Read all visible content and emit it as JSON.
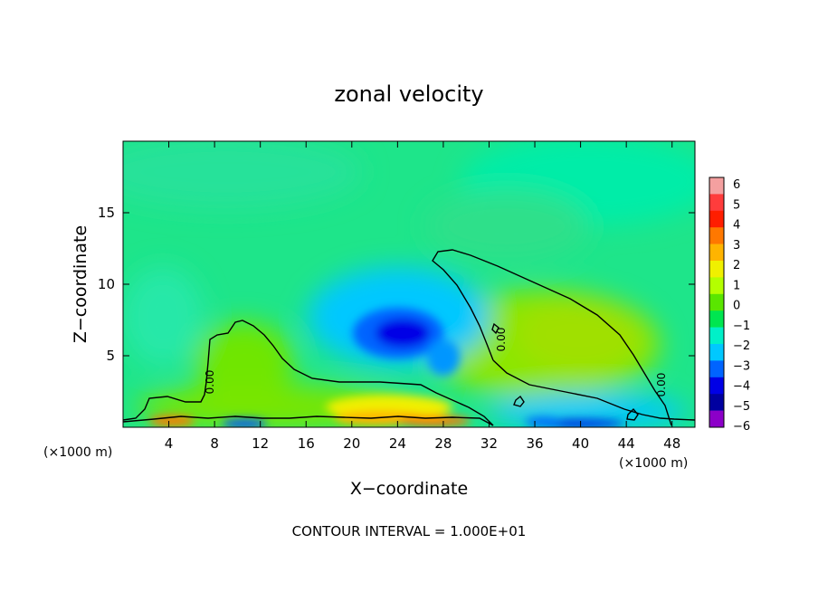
{
  "chart_data": {
    "type": "heatmap",
    "title": "zonal velocity",
    "xlabel": "X−coordinate",
    "ylabel": "Z−coordinate",
    "x_unit_left": "(×1000 m)",
    "x_unit_right": "(×1000 m)",
    "xlim": [
      0,
      50
    ],
    "ylim": [
      0,
      20
    ],
    "xticks": [
      4,
      8,
      12,
      16,
      20,
      24,
      28,
      32,
      36,
      40,
      44,
      48
    ],
    "yticks": [
      5,
      10,
      15
    ],
    "colorbar": {
      "ticks": [
        6,
        5,
        4,
        3,
        2,
        1,
        0,
        -1,
        -2,
        -3,
        -4,
        -5,
        -6
      ],
      "tick_labels": [
        "6",
        "5",
        "4",
        "3",
        "2",
        "1",
        "0",
        "−1",
        "−2",
        "−3",
        "−4",
        "−5",
        "−6"
      ],
      "colors": [
        "#f4a0a0",
        "#ff3c3c",
        "#ff1e00",
        "#ff7800",
        "#ffb400",
        "#f0f000",
        "#b4ff00",
        "#5ae600",
        "#00e650",
        "#00f0c8",
        "#00c8ff",
        "#0064ff",
        "#0000e6",
        "#0000a0",
        "#8c00c8"
      ]
    },
    "contour_label": "0.00",
    "footer": "CONTOUR INTERVAL = 1.000E+01"
  }
}
